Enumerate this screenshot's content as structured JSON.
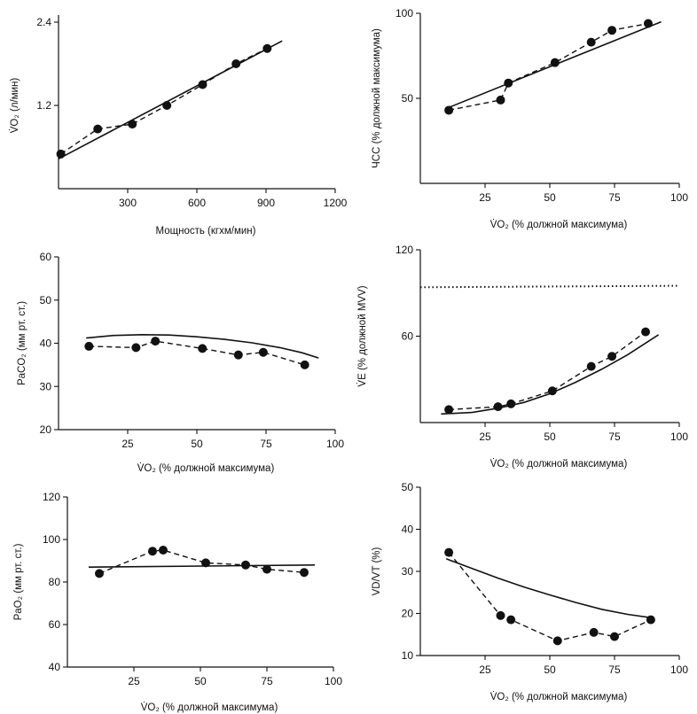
{
  "chart_data": [
    {
      "id": "vo2",
      "type": "line",
      "title": "",
      "xlabel": "Мощность (кгхм/мин)",
      "ylabel": "V̇O₂ (л/мин)",
      "xlim": [
        0,
        1200
      ],
      "ylim": [
        0,
        2.4
      ],
      "xticks": [
        300,
        600,
        900,
        1200
      ],
      "xtick_labels": [
        "300",
        "600",
        "900",
        "1200"
      ],
      "yticks": [
        1.2,
        2.4
      ],
      "ytick_labels": [
        "1.2",
        "2.4"
      ],
      "series": [
        {
          "style": "solid",
          "x": [
            0,
            970
          ],
          "y": [
            0.43,
            2.13
          ]
        },
        {
          "style": "dashed",
          "markers": true,
          "x": [
            10,
            170,
            320,
            470,
            625,
            770,
            905
          ],
          "y": [
            0.5,
            0.86,
            0.93,
            1.2,
            1.5,
            1.8,
            2.02
          ]
        }
      ]
    },
    {
      "id": "hr",
      "type": "line",
      "title": "",
      "xlabel": "V̇O₂ (% должной максимума)",
      "ylabel": "ЧСС (% должной максимума)",
      "xlim": [
        0,
        100
      ],
      "ylim": [
        0,
        100
      ],
      "xticks": [
        25,
        50,
        75,
        100
      ],
      "xtick_labels": [
        "25",
        "50",
        "75",
        "100"
      ],
      "yticks": [
        50,
        100
      ],
      "ytick_labels": [
        "50",
        "100"
      ],
      "series": [
        {
          "style": "solid",
          "x": [
            10,
            93
          ],
          "y": [
            44,
            95
          ]
        },
        {
          "style": "dashed",
          "markers": true,
          "x": [
            11,
            31,
            34,
            52,
            66,
            74,
            88
          ],
          "y": [
            43,
            49,
            59,
            71,
            83,
            90,
            94
          ]
        }
      ]
    },
    {
      "id": "paco2",
      "type": "line",
      "title": "",
      "xlabel": "V̇O₂ (% должной максимума)",
      "ylabel": "PaCO₂ (мм рт. ст.)",
      "xlim": [
        0,
        100
      ],
      "ylim": [
        20,
        60
      ],
      "xticks": [
        25,
        50,
        75,
        100
      ],
      "xtick_labels": [
        "25",
        "50",
        "75",
        "100"
      ],
      "yticks": [
        20,
        30,
        40,
        50,
        60
      ],
      "ytick_labels": [
        "20",
        "30",
        "40",
        "50",
        "60"
      ],
      "series": [
        {
          "style": "solid",
          "x": [
            10,
            20,
            30,
            40,
            50,
            60,
            70,
            80,
            88,
            94
          ],
          "y": [
            41.2,
            41.8,
            42.0,
            41.9,
            41.5,
            40.9,
            40.1,
            39.0,
            37.8,
            36.6
          ]
        },
        {
          "style": "dashed",
          "markers": true,
          "x": [
            11,
            28,
            35,
            52,
            65,
            74,
            89
          ],
          "y": [
            39.3,
            39.0,
            40.5,
            38.8,
            37.3,
            37.9,
            35.0
          ]
        }
      ]
    },
    {
      "id": "ve",
      "type": "line",
      "title": "",
      "xlabel": "V̇O₂ (% должной максимума)",
      "ylabel": "V̇E (% должной MVV)",
      "xlim": [
        0,
        100
      ],
      "ylim": [
        0,
        120
      ],
      "xticks": [
        25,
        50,
        75,
        100
      ],
      "xtick_labels": [
        "25",
        "50",
        "75",
        "100"
      ],
      "yticks": [
        60,
        120
      ],
      "ytick_labels": [
        "60",
        "120"
      ],
      "series": [
        {
          "style": "dotted",
          "x": [
            0,
            100
          ],
          "y": [
            94,
            95
          ]
        },
        {
          "style": "solid",
          "x": [
            8,
            20,
            30,
            40,
            50,
            60,
            70,
            80,
            92
          ],
          "y": [
            6,
            7,
            10,
            14,
            20,
            28,
            37,
            47,
            61
          ]
        },
        {
          "style": "dashed",
          "markers": true,
          "x": [
            11,
            30,
            35,
            51,
            66,
            74,
            87
          ],
          "y": [
            9,
            11,
            13,
            22,
            39,
            46,
            63
          ]
        }
      ]
    },
    {
      "id": "pao2",
      "type": "line",
      "title": "",
      "xlabel": "V̇O₂ (% должной максимума)",
      "ylabel": "PaO₂ (мм рт. ст.)",
      "xlim": [
        0,
        100
      ],
      "ylim": [
        40,
        120
      ],
      "xticks": [
        25,
        50,
        75,
        100
      ],
      "xtick_labels": [
        "25",
        "50",
        "75",
        "100"
      ],
      "yticks": [
        40,
        60,
        80,
        100,
        120
      ],
      "ytick_labels": [
        "40",
        "60",
        "80",
        "100",
        "120"
      ],
      "series": [
        {
          "style": "solid",
          "x": [
            8,
            93
          ],
          "y": [
            87,
            88
          ]
        },
        {
          "style": "dashed",
          "markers": true,
          "x": [
            12,
            32,
            36,
            52,
            67,
            75,
            89
          ],
          "y": [
            84,
            94.5,
            95,
            89,
            88,
            86,
            84.5
          ]
        }
      ]
    },
    {
      "id": "vdvt",
      "type": "line",
      "title": "",
      "xlabel": "V̇O₂ (% должной максимума)",
      "ylabel": "VD/VT (%)",
      "xlim": [
        0,
        100
      ],
      "ylim": [
        10,
        50
      ],
      "xticks": [
        25,
        50,
        75,
        100
      ],
      "xtick_labels": [
        "25",
        "50",
        "75",
        "100"
      ],
      "yticks": [
        10,
        20,
        30,
        40,
        50
      ],
      "ytick_labels": [
        "10",
        "20",
        "30",
        "40",
        "50"
      ],
      "series": [
        {
          "style": "solid",
          "x": [
            10,
            20,
            30,
            40,
            50,
            60,
            70,
            80,
            90
          ],
          "y": [
            33,
            30.7,
            28.4,
            26.3,
            24.4,
            22.6,
            21.0,
            19.8,
            18.9
          ]
        },
        {
          "style": "dashed",
          "markers": true,
          "x": [
            11,
            31,
            35,
            53,
            67,
            75,
            89
          ],
          "y": [
            34.5,
            19.5,
            18.5,
            13.5,
            15.5,
            14.5,
            18.5
          ]
        }
      ]
    }
  ]
}
